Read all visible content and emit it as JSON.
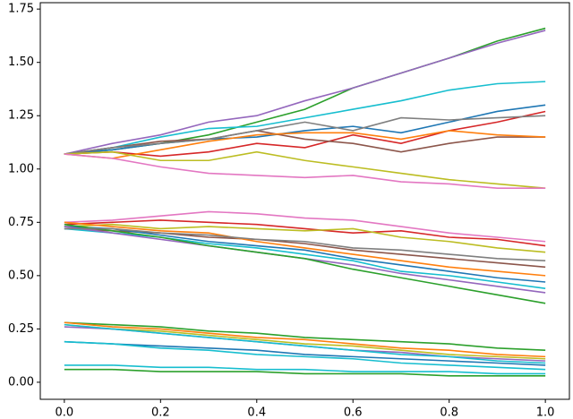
{
  "chart_data": {
    "type": "line",
    "x": [
      0,
      0.1,
      0.2,
      0.3,
      0.4,
      0.5,
      0.6,
      0.7,
      0.8,
      0.9,
      1.0
    ],
    "xlim": [
      -0.05,
      1.05
    ],
    "xticks": [
      {
        "value": 0,
        "label": "0.0"
      },
      {
        "value": 0.2,
        "label": "0.2"
      },
      {
        "value": 0.4,
        "label": "0.4"
      },
      {
        "value": 0.6,
        "label": "0.6"
      },
      {
        "value": 0.8,
        "label": "0.8"
      },
      {
        "value": 1.0,
        "label": "1.0"
      }
    ],
    "ylim": [
      -0.08,
      1.78
    ],
    "yticks": [
      {
        "value": 0,
        "label": "0.00"
      },
      {
        "value": 0.25,
        "label": "0.25"
      },
      {
        "value": 0.5,
        "label": "0.50"
      },
      {
        "value": 0.75,
        "label": "0.75"
      },
      {
        "value": 1.0,
        "label": "1.00"
      },
      {
        "value": 1.25,
        "label": "1.25"
      },
      {
        "value": 1.5,
        "label": "1.50"
      },
      {
        "value": 1.75,
        "label": "1.75"
      }
    ],
    "series": [
      {
        "color": "#2ca02c",
        "values": [
          1.07,
          1.09,
          1.12,
          1.16,
          1.22,
          1.28,
          1.38,
          1.45,
          1.52,
          1.6,
          1.66
        ]
      },
      {
        "color": "#9467bd",
        "values": [
          1.07,
          1.12,
          1.16,
          1.22,
          1.25,
          1.32,
          1.38,
          1.45,
          1.52,
          1.59,
          1.65
        ]
      },
      {
        "color": "#17becf",
        "values": [
          1.07,
          1.1,
          1.15,
          1.19,
          1.2,
          1.24,
          1.28,
          1.32,
          1.37,
          1.4,
          1.41
        ]
      },
      {
        "color": "#1f77b4",
        "values": [
          1.07,
          1.09,
          1.12,
          1.14,
          1.15,
          1.18,
          1.2,
          1.17,
          1.22,
          1.27,
          1.3
        ]
      },
      {
        "color": "#d62728",
        "values": [
          1.07,
          1.08,
          1.06,
          1.08,
          1.12,
          1.1,
          1.16,
          1.12,
          1.18,
          1.22,
          1.27
        ]
      },
      {
        "color": "#8c564b",
        "values": [
          1.07,
          1.1,
          1.13,
          1.14,
          1.18,
          1.14,
          1.12,
          1.08,
          1.12,
          1.15,
          1.15
        ]
      },
      {
        "color": "#ff7f0e",
        "values": [
          1.07,
          1.05,
          1.09,
          1.13,
          1.16,
          1.17,
          1.17,
          1.14,
          1.18,
          1.16,
          1.15
        ]
      },
      {
        "color": "#7f7f7f",
        "values": [
          1.07,
          1.1,
          1.12,
          1.14,
          1.18,
          1.22,
          1.18,
          1.24,
          1.23,
          1.24,
          1.25
        ]
      },
      {
        "color": "#bcbd22",
        "values": [
          1.07,
          1.08,
          1.04,
          1.04,
          1.08,
          1.04,
          1.01,
          0.98,
          0.95,
          0.93,
          0.91
        ]
      },
      {
        "color": "#e377c2",
        "values": [
          1.07,
          1.05,
          1.01,
          0.98,
          0.97,
          0.96,
          0.97,
          0.94,
          0.93,
          0.91,
          0.91
        ]
      },
      {
        "color": "#e377c2",
        "values": [
          0.75,
          0.76,
          0.78,
          0.8,
          0.79,
          0.77,
          0.76,
          0.73,
          0.7,
          0.68,
          0.66
        ]
      },
      {
        "color": "#d62728",
        "values": [
          0.74,
          0.75,
          0.76,
          0.75,
          0.74,
          0.72,
          0.7,
          0.71,
          0.68,
          0.67,
          0.64
        ]
      },
      {
        "color": "#bcbd22",
        "values": [
          0.73,
          0.74,
          0.72,
          0.73,
          0.72,
          0.71,
          0.72,
          0.68,
          0.66,
          0.63,
          0.61
        ]
      },
      {
        "color": "#8c564b",
        "values": [
          0.72,
          0.71,
          0.7,
          0.68,
          0.67,
          0.65,
          0.62,
          0.6,
          0.58,
          0.56,
          0.54
        ]
      },
      {
        "color": "#ff7f0e",
        "values": [
          0.75,
          0.73,
          0.71,
          0.7,
          0.66,
          0.63,
          0.6,
          0.57,
          0.54,
          0.52,
          0.5
        ]
      },
      {
        "color": "#1f77b4",
        "values": [
          0.73,
          0.72,
          0.69,
          0.66,
          0.64,
          0.62,
          0.58,
          0.55,
          0.52,
          0.49,
          0.47
        ]
      },
      {
        "color": "#17becf",
        "values": [
          0.72,
          0.7,
          0.68,
          0.65,
          0.63,
          0.6,
          0.57,
          0.52,
          0.5,
          0.47,
          0.44
        ]
      },
      {
        "color": "#9467bd",
        "values": [
          0.73,
          0.7,
          0.67,
          0.64,
          0.61,
          0.58,
          0.55,
          0.51,
          0.48,
          0.45,
          0.42
        ]
      },
      {
        "color": "#2ca02c",
        "values": [
          0.74,
          0.71,
          0.68,
          0.64,
          0.61,
          0.58,
          0.53,
          0.49,
          0.45,
          0.41,
          0.37
        ]
      },
      {
        "color": "#7f7f7f",
        "values": [
          0.72,
          0.72,
          0.7,
          0.69,
          0.67,
          0.66,
          0.63,
          0.62,
          0.6,
          0.58,
          0.57
        ]
      },
      {
        "color": "#2ca02c",
        "values": [
          0.28,
          0.27,
          0.26,
          0.24,
          0.23,
          0.21,
          0.2,
          0.19,
          0.18,
          0.16,
          0.15
        ]
      },
      {
        "color": "#ff7f0e",
        "values": [
          0.28,
          0.26,
          0.25,
          0.23,
          0.21,
          0.2,
          0.18,
          0.16,
          0.15,
          0.13,
          0.12
        ]
      },
      {
        "color": "#bcbd22",
        "values": [
          0.27,
          0.25,
          0.24,
          0.22,
          0.2,
          0.18,
          0.17,
          0.15,
          0.13,
          0.12,
          0.11
        ]
      },
      {
        "color": "#9467bd",
        "values": [
          0.26,
          0.25,
          0.23,
          0.21,
          0.19,
          0.17,
          0.15,
          0.14,
          0.12,
          0.11,
          0.1
        ]
      },
      {
        "color": "#17becf",
        "values": [
          0.27,
          0.25,
          0.23,
          0.21,
          0.19,
          0.17,
          0.15,
          0.13,
          0.12,
          0.1,
          0.09
        ]
      },
      {
        "color": "#1f77b4",
        "values": [
          0.19,
          0.18,
          0.17,
          0.16,
          0.15,
          0.13,
          0.12,
          0.11,
          0.1,
          0.09,
          0.08
        ]
      },
      {
        "color": "#17becf",
        "values": [
          0.19,
          0.18,
          0.16,
          0.15,
          0.13,
          0.12,
          0.11,
          0.09,
          0.08,
          0.07,
          0.06
        ]
      },
      {
        "color": "#17becf",
        "values": [
          0.08,
          0.08,
          0.07,
          0.07,
          0.06,
          0.06,
          0.05,
          0.05,
          0.05,
          0.04,
          0.04
        ]
      },
      {
        "color": "#2ca02c",
        "values": [
          0.06,
          0.06,
          0.05,
          0.05,
          0.05,
          0.04,
          0.04,
          0.04,
          0.03,
          0.03,
          0.03
        ]
      }
    ]
  }
}
